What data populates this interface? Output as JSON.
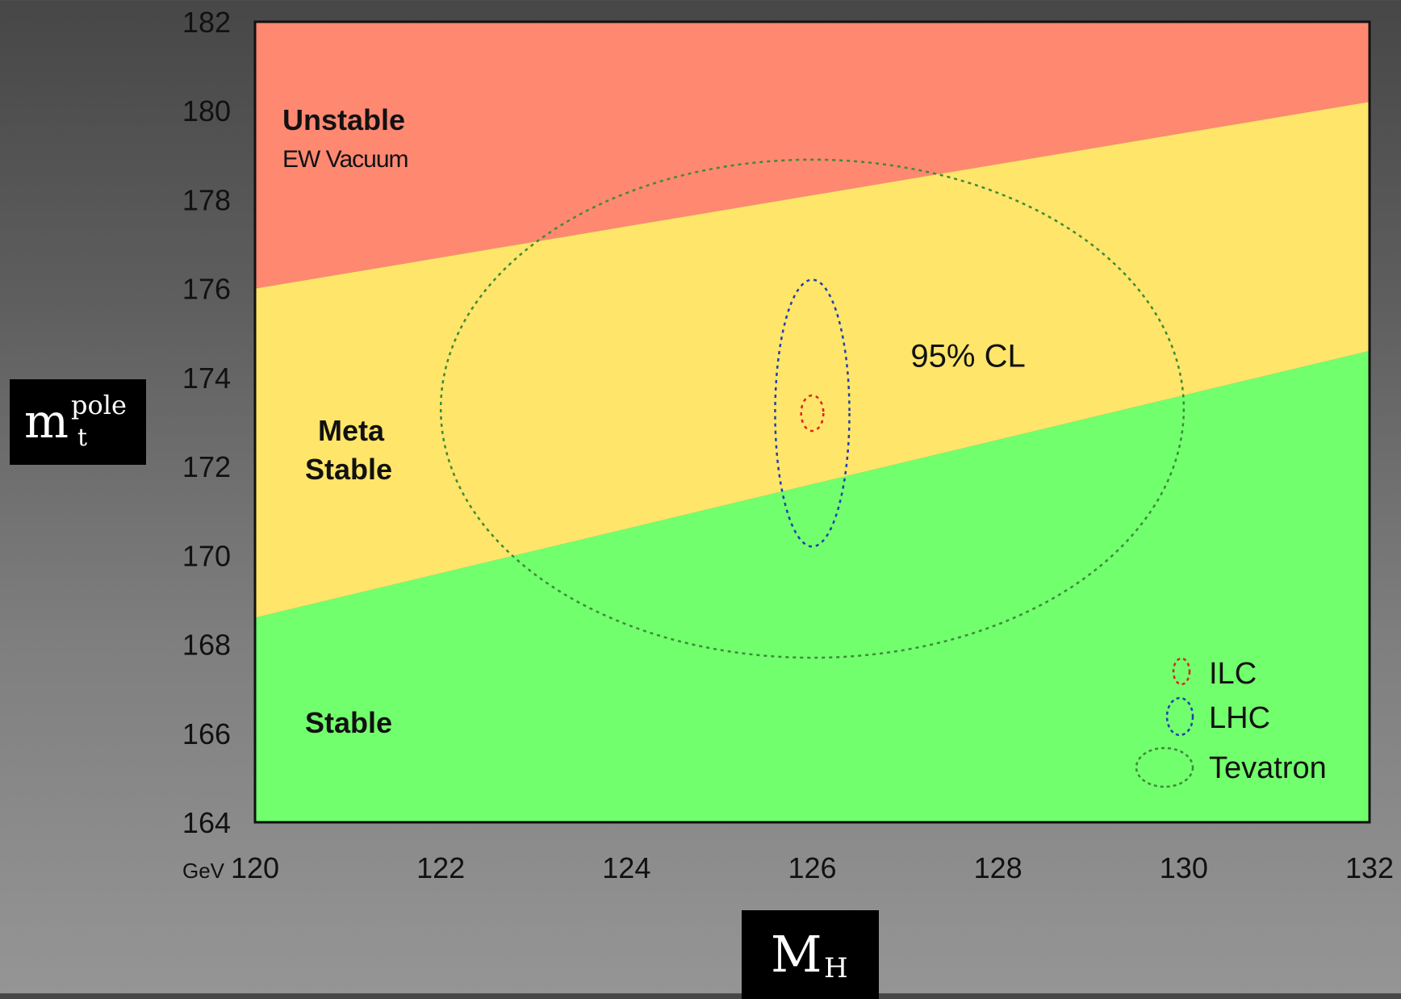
{
  "chart_data": {
    "type": "area",
    "xlabel": {
      "main": "M",
      "sub": "H"
    },
    "ylabel": {
      "main": "m",
      "sup": "pole",
      "sub": "t"
    },
    "x_unit": "GeV",
    "xlim": [
      120,
      132
    ],
    "ylim": [
      164,
      182
    ],
    "xticks": [
      120,
      122,
      124,
      126,
      128,
      130,
      132
    ],
    "yticks": [
      164,
      166,
      168,
      170,
      172,
      174,
      176,
      178,
      180,
      182
    ],
    "regions": [
      {
        "name": "Unstable",
        "sublabel": "EW Vacuum",
        "color": "#ff8871"
      },
      {
        "name": "Meta Stable",
        "line1": "Meta",
        "line2": "Stable",
        "color": "#ffe569"
      },
      {
        "name": "Stable",
        "color": "#72ff6d"
      }
    ],
    "boundaries": {
      "unstable_meta": [
        [
          120,
          176.0
        ],
        [
          132,
          180.2
        ]
      ],
      "meta_stable": [
        [
          120,
          168.6
        ],
        [
          132,
          174.6
        ]
      ]
    },
    "ellipses": [
      {
        "name": "ILC",
        "cx": 126.0,
        "cy": 173.2,
        "rx": 0.12,
        "ry": 0.4,
        "color": "#e02020"
      },
      {
        "name": "LHC",
        "cx": 126.0,
        "cy": 173.2,
        "rx": 0.4,
        "ry": 3.0,
        "color": "#1f3fb0"
      },
      {
        "name": "Tevatron",
        "cx": 126.0,
        "cy": 173.3,
        "rx": 4.0,
        "ry": 5.6,
        "color": "#3d8a3a"
      }
    ],
    "annotation": "95% CL",
    "annotation_pos": [
      127.0,
      174.5
    ],
    "legend_position": "bottom-right"
  }
}
